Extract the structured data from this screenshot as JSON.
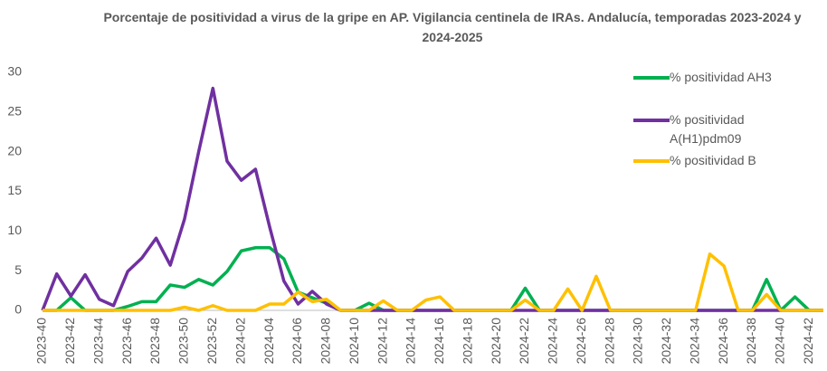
{
  "chart_data": {
    "type": "line",
    "title": "Porcentaje de positividad a virus de la gripe en AP. Vigilancia centinela de IRAs. Andalucía, temporadas 2023-2024 y 2024-2025",
    "categories": [
      "2023-40",
      null,
      "2023-42",
      null,
      "2023-44",
      null,
      "2023-46",
      null,
      "2023-48",
      null,
      "2023-50",
      null,
      "2023-52",
      null,
      "2024-02",
      null,
      "2024-04",
      null,
      "2024-06",
      null,
      "2024-08",
      null,
      "2024-10",
      null,
      "2024-12",
      null,
      "2024-14",
      null,
      "2024-16",
      null,
      "2024-18",
      null,
      "2024-20",
      null,
      "2024-22",
      null,
      "2024-24",
      null,
      "2024-26",
      null,
      "2024-28",
      null,
      "2024-30",
      null,
      "2024-32",
      null,
      "2024-34",
      null,
      "2024-36",
      null,
      "2024-38",
      null,
      "2024-40",
      null,
      "2024-42",
      null
    ],
    "series": [
      {
        "name": "% positividad AH3",
        "color": "#00b050",
        "values": [
          0,
          0,
          1.6,
          0,
          0,
          0,
          0.5,
          1.1,
          1.1,
          3.2,
          2.9,
          3.9,
          3.2,
          4.9,
          7.5,
          7.9,
          7.9,
          6.5,
          2.3,
          1.6,
          0.9,
          0,
          0,
          0.9,
          0,
          0,
          0,
          0,
          0,
          0,
          0,
          0,
          0,
          0,
          2.8,
          0,
          0,
          0,
          0,
          0,
          0,
          0,
          0,
          0,
          0,
          0,
          0,
          0,
          0,
          0,
          0,
          3.9,
          0,
          1.7,
          0,
          0
        ]
      },
      {
        "name": "% positividad A(H1)pdm09",
        "color": "#7030a0",
        "values": [
          0,
          4.6,
          1.8,
          4.5,
          1.4,
          0.6,
          4.9,
          6.6,
          9.1,
          5.7,
          11.5,
          20,
          28,
          18.8,
          16.4,
          17.8,
          10.5,
          3.7,
          0.8,
          2.4,
          0.8,
          0,
          0,
          0,
          0,
          0,
          0,
          0,
          0,
          0,
          0,
          0,
          0,
          0,
          0,
          0,
          0,
          0,
          0,
          0,
          0,
          0,
          0,
          0,
          0,
          0,
          0,
          0,
          0,
          0,
          0,
          0,
          0,
          0,
          0,
          0
        ]
      },
      {
        "name": "% positividad B",
        "color": "#ffc000",
        "values": [
          0,
          0,
          0,
          0,
          0,
          0,
          0,
          0,
          0,
          0,
          0.4,
          0,
          0.6,
          0,
          0,
          0,
          0.8,
          0.8,
          2.3,
          1.1,
          1.4,
          0,
          0,
          0,
          1.2,
          0,
          0,
          1.3,
          1.7,
          0,
          0,
          0,
          0,
          0,
          1.3,
          0,
          0,
          2.7,
          0,
          4.3,
          0,
          0,
          0,
          0,
          0,
          0,
          0,
          7.1,
          5.6,
          0,
          0,
          2.0,
          0,
          0,
          0,
          0
        ]
      }
    ],
    "ylim": [
      0,
      30
    ],
    "yticks": [
      0,
      5,
      10,
      15,
      20,
      25,
      30
    ],
    "grid": false,
    "legend": "upper right"
  }
}
